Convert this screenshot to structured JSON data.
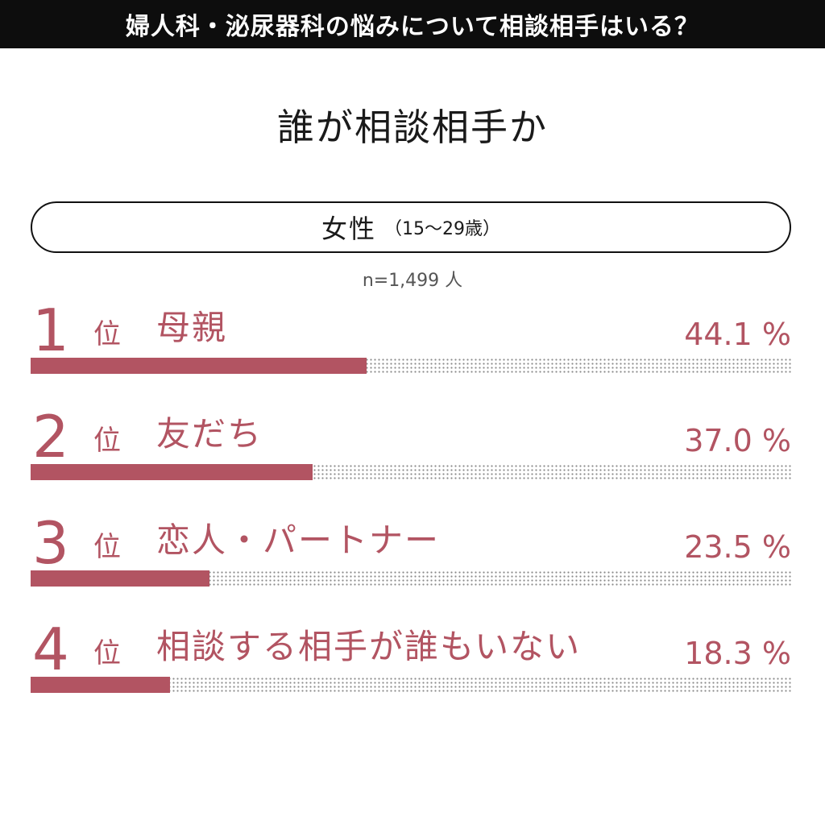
{
  "banner": {
    "text": "婦人科・泌尿器科の悩みについて相談相手はいる？"
  },
  "heading": "誰が相談相手か",
  "segment": {
    "label": "女性",
    "age_range": "（15〜29歳）"
  },
  "sample_size": "n=1,499 人",
  "rank_unit": "位",
  "percent_suffix": " %",
  "colors": {
    "accent": "#b25462",
    "banner_bg": "#0d0d0d",
    "text": "#1a1a1a"
  },
  "chart_data": {
    "type": "bar",
    "orientation": "horizontal",
    "xlim": [
      0,
      100
    ],
    "categories": [
      "母親",
      "友だち",
      "恋人・パートナー",
      "相談する相手が誰もいない"
    ],
    "ranks": [
      "1",
      "2",
      "3",
      "4"
    ],
    "values": [
      44.1,
      37.0,
      23.5,
      18.3
    ],
    "value_labels": [
      "44.1",
      "37.0",
      "23.5",
      "18.3"
    ]
  }
}
